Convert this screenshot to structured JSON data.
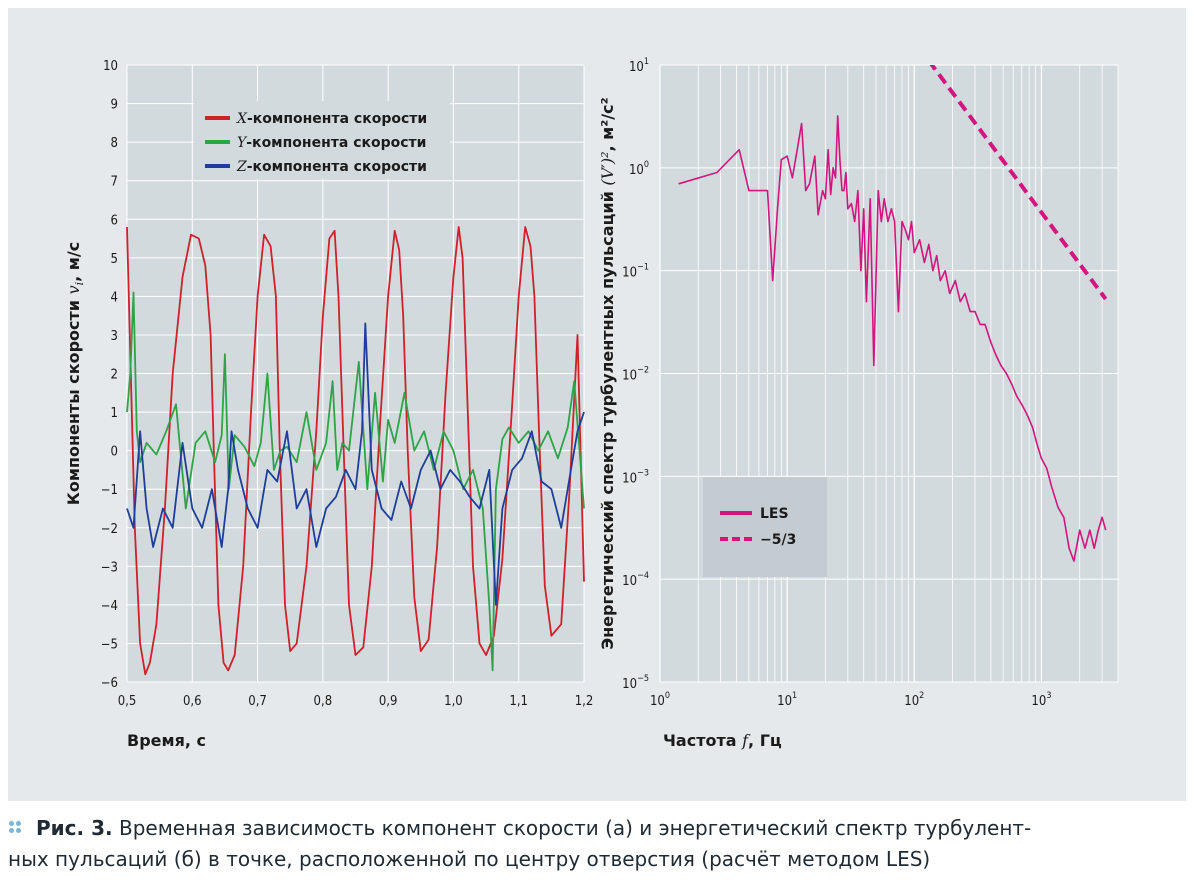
{
  "chart_data": [
    {
      "type": "line",
      "xlabel": "Время, с",
      "ylabel_prefix": "Компоненты скорости ",
      "ylabel_var": "vi",
      "ylabel_unit": ", м/с",
      "xlim": [
        0.5,
        1.2
      ],
      "ylim": [
        -6,
        10
      ],
      "x_ticks": [
        "0,5",
        "0,6",
        "0,7",
        "0,8",
        "0,9",
        "1,0",
        "1,1",
        "1,2"
      ],
      "y_ticks": [
        "−6",
        "−5",
        "−4",
        "−3",
        "−2",
        "−1",
        "0",
        "1",
        "2",
        "3",
        "4",
        "5",
        "6",
        "7",
        "8",
        "9",
        "10"
      ],
      "grid": true,
      "legend_position": "top-center",
      "series": [
        {
          "var": "X",
          "name": "-компонента скорости",
          "color": "#d0202a",
          "x": [
            0.5,
            0.505,
            0.512,
            0.52,
            0.528,
            0.535,
            0.545,
            0.558,
            0.57,
            0.585,
            0.598,
            0.61,
            0.62,
            0.628,
            0.633,
            0.64,
            0.648,
            0.655,
            0.665,
            0.678,
            0.69,
            0.7,
            0.71,
            0.72,
            0.728,
            0.734,
            0.742,
            0.75,
            0.76,
            0.775,
            0.79,
            0.8,
            0.81,
            0.818,
            0.824,
            0.832,
            0.84,
            0.85,
            0.862,
            0.875,
            0.888,
            0.9,
            0.91,
            0.917,
            0.923,
            0.93,
            0.94,
            0.95,
            0.962,
            0.975,
            0.988,
            1.0,
            1.008,
            1.014,
            1.02,
            1.03,
            1.04,
            1.05,
            1.062,
            1.075,
            1.09,
            1.1,
            1.11,
            1.118,
            1.124,
            1.131,
            1.14,
            1.15,
            1.165,
            1.178,
            1.19,
            1.2
          ],
          "y": [
            5.8,
            2.5,
            -2.0,
            -5.0,
            -5.8,
            -5.5,
            -4.5,
            -1.5,
            2.0,
            4.5,
            5.6,
            5.5,
            4.8,
            3.0,
            0.0,
            -4.0,
            -5.5,
            -5.7,
            -5.3,
            -3.0,
            1.0,
            4.0,
            5.6,
            5.3,
            4.0,
            0.0,
            -4.0,
            -5.2,
            -5.0,
            -3.0,
            0.5,
            3.5,
            5.5,
            5.7,
            4.0,
            0.0,
            -4.0,
            -5.3,
            -5.1,
            -3.0,
            0.8,
            4.0,
            5.7,
            5.2,
            3.5,
            0.0,
            -3.8,
            -5.2,
            -4.9,
            -2.5,
            1.5,
            4.5,
            5.8,
            5.0,
            2.0,
            -3.0,
            -5.0,
            -5.3,
            -4.8,
            -2.8,
            1.2,
            4.0,
            5.8,
            5.3,
            4.0,
            0.5,
            -3.5,
            -4.8,
            -4.5,
            -1.0,
            3.0,
            -3.4
          ]
        },
        {
          "var": "Y",
          "name": "-компонента скорости",
          "color": "#2ea447",
          "x": [
            0.5,
            0.505,
            0.51,
            0.515,
            0.52,
            0.53,
            0.545,
            0.56,
            0.575,
            0.59,
            0.605,
            0.62,
            0.635,
            0.645,
            0.65,
            0.656,
            0.665,
            0.68,
            0.695,
            0.705,
            0.715,
            0.725,
            0.735,
            0.745,
            0.76,
            0.775,
            0.79,
            0.805,
            0.815,
            0.822,
            0.83,
            0.84,
            0.855,
            0.868,
            0.88,
            0.892,
            0.9,
            0.91,
            0.925,
            0.94,
            0.955,
            0.97,
            0.985,
            1.0,
            1.015,
            1.03,
            1.045,
            1.055,
            1.06,
            1.065,
            1.075,
            1.085,
            1.1,
            1.115,
            1.13,
            1.145,
            1.16,
            1.175,
            1.185,
            1.2
          ],
          "y": [
            1.0,
            2.0,
            4.1,
            0.5,
            -0.3,
            0.2,
            -0.1,
            0.5,
            1.2,
            -1.5,
            0.2,
            0.5,
            -0.3,
            0.4,
            2.5,
            -1.0,
            0.4,
            0.1,
            -0.4,
            0.2,
            2.0,
            -0.5,
            0.0,
            0.1,
            -0.3,
            1.0,
            -0.5,
            0.2,
            1.8,
            -0.5,
            0.2,
            0.0,
            2.3,
            -1.0,
            1.5,
            -0.8,
            0.8,
            0.2,
            1.5,
            0.0,
            0.5,
            -0.5,
            0.5,
            0.0,
            -1.0,
            -0.5,
            -1.5,
            -4.0,
            -5.7,
            -1.0,
            0.3,
            0.6,
            0.2,
            0.5,
            0.0,
            0.5,
            -0.2,
            0.6,
            1.8,
            -1.5
          ]
        },
        {
          "var": "Z",
          "name": "-компонента скорости",
          "color": "#1d3f99",
          "x": [
            0.5,
            0.51,
            0.52,
            0.53,
            0.54,
            0.555,
            0.57,
            0.585,
            0.6,
            0.615,
            0.63,
            0.645,
            0.655,
            0.66,
            0.67,
            0.685,
            0.7,
            0.715,
            0.73,
            0.745,
            0.76,
            0.775,
            0.79,
            0.805,
            0.82,
            0.835,
            0.85,
            0.86,
            0.865,
            0.875,
            0.89,
            0.905,
            0.92,
            0.935,
            0.95,
            0.965,
            0.98,
            0.995,
            1.01,
            1.025,
            1.04,
            1.055,
            1.065,
            1.075,
            1.09,
            1.105,
            1.12,
            1.135,
            1.15,
            1.165,
            1.18,
            1.19,
            1.2
          ],
          "y": [
            -1.5,
            -2.0,
            0.5,
            -1.5,
            -2.5,
            -1.5,
            -2.0,
            0.2,
            -1.5,
            -2.0,
            -1.0,
            -2.5,
            -1.0,
            0.5,
            -0.5,
            -1.5,
            -2.0,
            -0.5,
            -0.8,
            0.5,
            -1.5,
            -1.0,
            -2.5,
            -1.5,
            -1.2,
            -0.5,
            -1.0,
            0.5,
            3.3,
            -0.5,
            -1.5,
            -1.8,
            -0.8,
            -1.5,
            -0.5,
            0.0,
            -1.0,
            -0.5,
            -0.8,
            -1.2,
            -1.5,
            -0.5,
            -4.0,
            -1.5,
            -0.5,
            -0.2,
            0.5,
            -0.8,
            -1.0,
            -2.0,
            -0.5,
            0.5,
            1.0
          ]
        }
      ]
    },
    {
      "type": "line",
      "xlabel_prefix": "Частота ",
      "xlabel_var": "f",
      "xlabel_unit": ", Гц",
      "ylabel_prefix": "Энергетический спектр турбулентных пульсаций ",
      "ylabel_var": "(V′)²",
      "ylabel_unit": ", м²/с²",
      "x_scale": "log",
      "y_scale": "log",
      "xlim": [
        1,
        4000
      ],
      "ylim": [
        1e-05,
        10
      ],
      "x_ticks": [
        {
          "base": "10",
          "exp": "0"
        },
        {
          "base": "10",
          "exp": "1"
        },
        {
          "base": "10",
          "exp": "2"
        },
        {
          "base": "10",
          "exp": "3"
        }
      ],
      "y_ticks": [
        {
          "base": "10",
          "exp": "−5"
        },
        {
          "base": "10",
          "exp": "−4"
        },
        {
          "base": "10",
          "exp": "−3"
        },
        {
          "base": "10",
          "exp": "−2"
        },
        {
          "base": "10",
          "exp": "−1"
        },
        {
          "base": "10",
          "exp": "0"
        },
        {
          "base": "10",
          "exp": "1"
        }
      ],
      "grid": true,
      "legend_position": "bottom-left",
      "series": [
        {
          "name": "LES",
          "color": "#d4147f",
          "style": "solid",
          "x": [
            1.4,
            2.8,
            4.2,
            5.0,
            5.6,
            7.0,
            7.7,
            8.4,
            9.0,
            10.0,
            11.0,
            12.0,
            13.0,
            14.0,
            15.0,
            16.5,
            17.5,
            19.0,
            20.0,
            21.0,
            22.0,
            23.0,
            24.0,
            25.0,
            26.0,
            27.0,
            28.0,
            29.0,
            30.0,
            32.0,
            34.0,
            36.0,
            38.0,
            40.0,
            42.0,
            45.0,
            48.0,
            52.0,
            55.0,
            58.0,
            62.0,
            66.0,
            70.0,
            75.0,
            80.0,
            85.0,
            90.0,
            95.0,
            100.0,
            110.0,
            120.0,
            130.0,
            140.0,
            150.0,
            160.0,
            175.0,
            190.0,
            210.0,
            230.0,
            250.0,
            275.0,
            300.0,
            330.0,
            360.0,
            400.0,
            440.0,
            480.0,
            530.0,
            580.0,
            640.0,
            700.0,
            770.0,
            850.0,
            930.0,
            1000.0,
            1100.0,
            1200.0,
            1350.0,
            1500.0,
            1650.0,
            1800.0,
            2000.0,
            2200.0,
            2400.0,
            2600.0,
            2800.0,
            3000.0,
            3200.0
          ],
          "y": [
            0.7,
            0.9,
            1.5,
            0.6,
            0.6,
            0.6,
            0.08,
            0.4,
            1.2,
            1.3,
            0.8,
            1.5,
            2.7,
            0.6,
            0.7,
            1.3,
            0.35,
            0.6,
            0.5,
            1.5,
            0.55,
            1.0,
            0.8,
            3.2,
            1.2,
            0.6,
            0.6,
            0.9,
            0.4,
            0.45,
            0.3,
            0.6,
            0.1,
            0.4,
            0.05,
            0.5,
            0.012,
            0.6,
            0.3,
            0.5,
            0.3,
            0.4,
            0.3,
            0.04,
            0.3,
            0.25,
            0.2,
            0.3,
            0.15,
            0.2,
            0.12,
            0.18,
            0.1,
            0.14,
            0.08,
            0.1,
            0.06,
            0.08,
            0.05,
            0.06,
            0.04,
            0.04,
            0.03,
            0.03,
            0.02,
            0.015,
            0.012,
            0.01,
            0.008,
            0.006,
            0.005,
            0.004,
            0.003,
            0.002,
            0.0015,
            0.0012,
            0.0008,
            0.0005,
            0.0004,
            0.0002,
            0.00015,
            0.0003,
            0.0002,
            0.0003,
            0.0002,
            0.0003,
            0.0004,
            0.0003
          ]
        },
        {
          "name": "−5/3",
          "color": "#d4147f",
          "style": "dashed",
          "x": [
            130,
            3200
          ],
          "y": [
            11,
            0.053
          ]
        }
      ]
    }
  ],
  "caption": {
    "label": "Рис. 3.",
    "line1": " Временная зависимость компонент скорости (а) и энергетический спектр турбулент-",
    "line2": "ных пульсаций (б) в точке, расположенной по центру отверстия (расчёт методом LES)"
  }
}
